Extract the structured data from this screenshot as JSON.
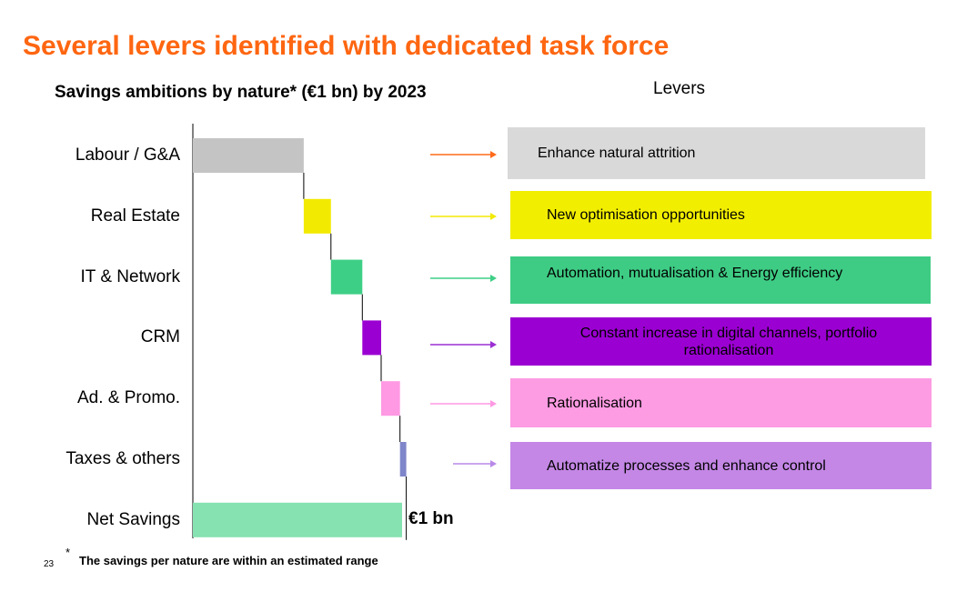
{
  "title": "Several levers identified with dedicated task force",
  "subtitle": "Savings ambitions by nature* (€1 bn) by 2023",
  "levers_heading": "Levers",
  "footer": {
    "page_number": "23",
    "asterisk": "*",
    "note": "The savings per nature are within an estimated range"
  },
  "chart_data": {
    "type": "bar",
    "subtype": "waterfall",
    "unit": "€ bn",
    "categories": [
      "Labour / G&A",
      "Real Estate",
      "IT & Network",
      "CRM",
      "Ad. & Promo.",
      "Taxes & others",
      "Net Savings"
    ],
    "values": [
      0.53,
      0.13,
      0.15,
      0.09,
      0.09,
      0.03,
      1.0
    ],
    "colors": [
      "#c4c4c4",
      "#f2ea00",
      "#3ecf86",
      "#9b00d2",
      "#ff99e3",
      "#7f86c9",
      "#86e2b1"
    ],
    "total_label": "€1 bn"
  },
  "levers": [
    {
      "text": "Enhance natural attrition",
      "color": "#d9d9d9",
      "text_color": "#000000",
      "arrow_color": "#ff6a1a"
    },
    {
      "text": "New optimisation opportunities",
      "color": "#f2ee00",
      "text_color": "#000000",
      "arrow_color": "#f2ea00"
    },
    {
      "text": "Automation, mutualisation & Energy efficiency",
      "color": "#3ecc84",
      "text_color": "#000000",
      "arrow_color": "#3ecf86"
    },
    {
      "text": "Constant increase in digital channels, portfolio rationalisation",
      "color": "#9b00d2",
      "text_color": "#000000",
      "arrow_color": "#9b2fd2"
    },
    {
      "text": "Rationalisation",
      "color": "#fd9be3",
      "text_color": "#000000",
      "arrow_color": "#ff99e3"
    },
    {
      "text": "Automatize processes and enhance control",
      "color": "#c487e6",
      "text_color": "#000000",
      "arrow_color": "#b889e8"
    }
  ]
}
